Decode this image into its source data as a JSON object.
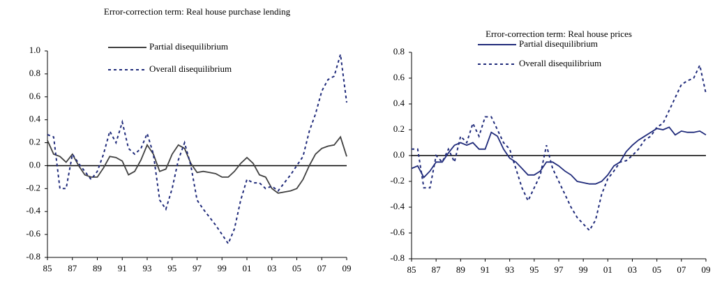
{
  "chart_data": [
    {
      "type": "line",
      "title": "Error-correction term: Real house purchase lending",
      "x": [
        1985,
        1985.5,
        1986,
        1986.5,
        1987,
        1987.5,
        1988,
        1988.5,
        1989,
        1989.5,
        1990,
        1990.5,
        1991,
        1991.5,
        1992,
        1992.5,
        1993,
        1993.5,
        1994,
        1994.5,
        1995,
        1995.5,
        1996,
        1996.5,
        1997,
        1997.5,
        1998,
        1998.5,
        1999,
        1999.5,
        2000,
        2000.5,
        2001,
        2001.5,
        2002,
        2002.5,
        2003,
        2003.5,
        2004,
        2004.5,
        2005,
        2005.5,
        2006,
        2006.5,
        2007,
        2007.5,
        2008,
        2008.5,
        2009
      ],
      "series": [
        {
          "name": "Partial disequilibrium",
          "color": "#404040",
          "dash": false,
          "values": [
            0.22,
            0.1,
            0.08,
            0.03,
            0.1,
            0.0,
            -0.08,
            -0.1,
            -0.1,
            -0.02,
            0.08,
            0.07,
            0.04,
            -0.08,
            -0.05,
            0.05,
            0.18,
            0.1,
            -0.05,
            -0.03,
            0.1,
            0.18,
            0.15,
            0.02,
            -0.06,
            -0.05,
            -0.06,
            -0.07,
            -0.1,
            -0.1,
            -0.05,
            0.02,
            0.07,
            0.02,
            -0.08,
            -0.1,
            -0.2,
            -0.24,
            -0.23,
            -0.22,
            -0.2,
            -0.12,
            0.0,
            0.1,
            0.15,
            0.17,
            0.18,
            0.25,
            0.08
          ]
        },
        {
          "name": "Overall disequilibrium",
          "color": "#1f2a7a",
          "dash": true,
          "values": [
            0.27,
            0.25,
            -0.2,
            -0.2,
            0.1,
            0.02,
            -0.05,
            -0.12,
            -0.05,
            0.1,
            0.3,
            0.2,
            0.38,
            0.15,
            0.1,
            0.15,
            0.28,
            0.1,
            -0.3,
            -0.38,
            -0.2,
            0.05,
            0.2,
            0.0,
            -0.3,
            -0.38,
            -0.45,
            -0.52,
            -0.6,
            -0.68,
            -0.55,
            -0.3,
            -0.12,
            -0.15,
            -0.15,
            -0.2,
            -0.18,
            -0.22,
            -0.15,
            -0.08,
            0.0,
            0.08,
            0.3,
            0.45,
            0.65,
            0.75,
            0.78,
            0.97,
            0.55
          ]
        }
      ],
      "xlim": [
        1985,
        2009
      ],
      "xticks": [
        {
          "value": 1985,
          "label": "85"
        },
        {
          "value": 1987,
          "label": "87"
        },
        {
          "value": 1989,
          "label": "89"
        },
        {
          "value": 1991,
          "label": "91"
        },
        {
          "value": 1993,
          "label": "93"
        },
        {
          "value": 1995,
          "label": "95"
        },
        {
          "value": 1997,
          "label": "97"
        },
        {
          "value": 1999,
          "label": "99"
        },
        {
          "value": 2001,
          "label": "01"
        },
        {
          "value": 2003,
          "label": "03"
        },
        {
          "value": 2005,
          "label": "05"
        },
        {
          "value": 2007,
          "label": "07"
        },
        {
          "value": 2009,
          "label": "09"
        }
      ],
      "ylim": [
        -0.8,
        1.0
      ],
      "yticks": [
        -0.8,
        -0.6,
        -0.4,
        -0.2,
        {
          "value": 0,
          "label": "0.0"
        },
        0.2,
        0.4,
        0.6,
        0.8,
        {
          "value": 1.0,
          "label": "1.0"
        }
      ]
    },
    {
      "type": "line",
      "title": "Error-correction term: Real house prices",
      "x": [
        1985,
        1985.5,
        1986,
        1986.5,
        1987,
        1987.5,
        1988,
        1988.5,
        1989,
        1989.5,
        1990,
        1990.5,
        1991,
        1991.5,
        1992,
        1992.5,
        1993,
        1993.5,
        1994,
        1994.5,
        1995,
        1995.5,
        1996,
        1996.5,
        1997,
        1997.5,
        1998,
        1998.5,
        1999,
        1999.5,
        2000,
        2000.5,
        2001,
        2001.5,
        2002,
        2002.5,
        2003,
        2003.5,
        2004,
        2004.5,
        2005,
        2005.5,
        2006,
        2006.5,
        2007,
        2007.5,
        2008,
        2008.5,
        2009
      ],
      "series": [
        {
          "name": "Partial disequilibrium",
          "color": "#1f2a7a",
          "dash": false,
          "values": [
            -0.1,
            -0.08,
            -0.17,
            -0.12,
            -0.05,
            -0.05,
            0.02,
            0.08,
            0.1,
            0.08,
            0.1,
            0.05,
            0.05,
            0.18,
            0.15,
            0.05,
            -0.02,
            -0.05,
            -0.1,
            -0.15,
            -0.15,
            -0.12,
            -0.05,
            -0.05,
            -0.08,
            -0.12,
            -0.15,
            -0.2,
            -0.21,
            -0.22,
            -0.22,
            -0.2,
            -0.15,
            -0.08,
            -0.05,
            0.03,
            0.08,
            0.12,
            0.15,
            0.18,
            0.21,
            0.2,
            0.22,
            0.16,
            0.19,
            0.18,
            0.18,
            0.19,
            0.16
          ]
        },
        {
          "name": "Overall disequilibrium",
          "color": "#1f2a7a",
          "dash": true,
          "values": [
            0.05,
            0.05,
            -0.25,
            -0.25,
            0.0,
            -0.05,
            0.05,
            -0.05,
            0.15,
            0.1,
            0.25,
            0.15,
            0.3,
            0.3,
            0.2,
            0.1,
            0.05,
            -0.1,
            -0.25,
            -0.35,
            -0.25,
            -0.15,
            0.08,
            -0.1,
            -0.2,
            -0.3,
            -0.4,
            -0.48,
            -0.53,
            -0.58,
            -0.5,
            -0.3,
            -0.18,
            -0.12,
            -0.05,
            -0.04,
            0.0,
            0.05,
            0.12,
            0.15,
            0.22,
            0.25,
            0.35,
            0.45,
            0.55,
            0.58,
            0.6,
            0.7,
            0.48
          ]
        }
      ],
      "xlim": [
        1985,
        2009
      ],
      "xticks": [
        {
          "value": 1985,
          "label": "85"
        },
        {
          "value": 1987,
          "label": "87"
        },
        {
          "value": 1989,
          "label": "89"
        },
        {
          "value": 1991,
          "label": "91"
        },
        {
          "value": 1993,
          "label": "93"
        },
        {
          "value": 1995,
          "label": "95"
        },
        {
          "value": 1997,
          "label": "97"
        },
        {
          "value": 1999,
          "label": "99"
        },
        {
          "value": 2001,
          "label": "01"
        },
        {
          "value": 2003,
          "label": "03"
        },
        {
          "value": 2005,
          "label": "05"
        },
        {
          "value": 2007,
          "label": "07"
        },
        {
          "value": 2009,
          "label": "09"
        }
      ],
      "ylim": [
        -0.8,
        0.8
      ],
      "yticks": [
        -0.8,
        -0.6,
        -0.4,
        -0.2,
        {
          "value": 0,
          "label": "0.0"
        },
        0.2,
        0.4,
        0.6,
        0.8
      ]
    }
  ]
}
